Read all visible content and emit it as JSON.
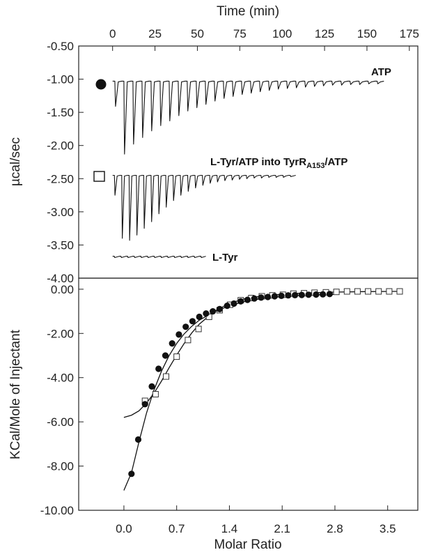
{
  "chart_data": [
    {
      "type": "line",
      "panel": "top",
      "xlabel": "Time (min)",
      "ylabel": "µcal/sec",
      "xlim": [
        -20,
        180
      ],
      "ylim": [
        -4.0,
        -0.5
      ],
      "xticks": [
        "0",
        "25",
        "50",
        "75",
        "100",
        "125",
        "150",
        "175"
      ],
      "yticks": [
        "-0.50",
        "-1.00",
        "-1.50",
        "-2.00",
        "-2.50",
        "-3.00",
        "-3.50",
        "-4.00"
      ],
      "grid": false,
      "series": [
        {
          "name": "ATP",
          "marker": "filled-circle",
          "baseline": -1.03,
          "time_range": [
            0,
            160
          ],
          "injections": 30,
          "peak_depths": [
            0.38,
            1.1,
            0.95,
            0.85,
            0.75,
            0.67,
            0.6,
            0.52,
            0.45,
            0.4,
            0.35,
            0.3,
            0.26,
            0.23,
            0.2,
            0.18,
            0.16,
            0.14,
            0.12,
            0.11,
            0.1,
            0.09,
            0.08,
            0.07,
            0.06,
            0.06,
            0.05,
            0.05,
            0.04,
            0.04
          ]
        },
        {
          "name": "L-Tyr/ATP into TyrR",
          "name_subscript": "A153",
          "name_suffix": "/ATP",
          "marker": "open-square",
          "baseline": -2.45,
          "time_range": [
            0,
            108
          ],
          "injections": 25,
          "peak_depths": [
            0.3,
            0.95,
            0.98,
            0.9,
            0.8,
            0.7,
            0.58,
            0.48,
            0.38,
            0.3,
            0.24,
            0.19,
            0.15,
            0.12,
            0.1,
            0.08,
            0.07,
            0.06,
            0.05,
            0.04,
            0.04,
            0.03,
            0.03,
            0.03,
            0.02
          ]
        },
        {
          "name": "L-Tyr",
          "baseline": -3.67,
          "time_range": [
            0,
            55
          ],
          "injections": 14,
          "peak_depths": [
            0.02,
            0.02,
            0.02,
            0.02,
            0.02,
            0.02,
            0.02,
            0.02,
            0.02,
            0.02,
            0.02,
            0.02,
            0.02,
            0.02
          ]
        }
      ]
    },
    {
      "type": "scatter",
      "panel": "bottom",
      "xlabel": "Molar Ratio",
      "ylabel": "KCal/Mole of Injectant",
      "xlim": [
        -0.6,
        3.9
      ],
      "ylim": [
        -10.0,
        0.5
      ],
      "xticks": [
        "0.0",
        "0.7",
        "1.4",
        "2.1",
        "2.8",
        "3.5"
      ],
      "yticks": [
        "0.00",
        "-2.00",
        "-4.00",
        "-6.00",
        "-8.00",
        "-10.00"
      ],
      "grid": false,
      "series": [
        {
          "name": "ATP",
          "marker": "filled-circle",
          "x": [
            0.1,
            0.19,
            0.28,
            0.37,
            0.46,
            0.55,
            0.64,
            0.73,
            0.82,
            0.91,
            1.0,
            1.09,
            1.18,
            1.27,
            1.37,
            1.46,
            1.55,
            1.64,
            1.73,
            1.82,
            1.91,
            2.0,
            2.09,
            2.18,
            2.27,
            2.36,
            2.45,
            2.55,
            2.64,
            2.73
          ],
          "y": [
            -8.35,
            -6.8,
            -5.2,
            -4.4,
            -3.6,
            -3.0,
            -2.45,
            -2.05,
            -1.7,
            -1.45,
            -1.25,
            -1.1,
            -1.0,
            -0.9,
            -0.75,
            -0.65,
            -0.55,
            -0.48,
            -0.42,
            -0.38,
            -0.35,
            -0.32,
            -0.3,
            -0.28,
            -0.27,
            -0.26,
            -0.25,
            -0.24,
            -0.23,
            -0.22
          ]
        },
        {
          "name": "L-Tyr/ATP into TyrR",
          "marker": "open-square",
          "x": [
            0.28,
            0.42,
            0.56,
            0.7,
            0.85,
            0.99,
            1.13,
            1.27,
            1.41,
            1.55,
            1.69,
            1.83,
            1.97,
            2.11,
            2.25,
            2.39,
            2.53,
            2.68,
            2.82,
            2.96,
            3.1,
            3.24,
            3.38,
            3.52,
            3.66
          ],
          "y": [
            -5.05,
            -4.75,
            -3.95,
            -3.05,
            -2.3,
            -1.8,
            -1.25,
            -0.95,
            -0.7,
            -0.5,
            -0.4,
            -0.32,
            -0.28,
            -0.25,
            -0.2,
            -0.18,
            -0.16,
            -0.14,
            -0.12,
            -0.1,
            -0.1,
            -0.1,
            -0.1,
            -0.1,
            -0.1
          ]
        }
      ],
      "fits": [
        {
          "x": [
            0.0,
            0.1,
            0.2,
            0.3,
            0.4,
            0.5,
            0.6,
            0.7,
            0.8,
            0.9,
            1.0,
            1.2,
            1.4,
            1.6,
            1.8,
            2.0,
            2.2,
            2.4,
            2.6,
            2.8
          ],
          "y": [
            -9.1,
            -8.3,
            -6.9,
            -5.6,
            -4.55,
            -3.7,
            -3.0,
            -2.45,
            -2.02,
            -1.68,
            -1.4,
            -1.02,
            -0.75,
            -0.56,
            -0.44,
            -0.36,
            -0.31,
            -0.27,
            -0.25,
            -0.23
          ]
        },
        {
          "x": [
            0.0,
            0.1,
            0.2,
            0.3,
            0.4,
            0.5,
            0.6,
            0.7,
            0.8,
            0.9,
            1.0,
            1.2,
            1.4,
            1.6,
            1.8,
            2.0,
            2.4,
            2.8,
            3.2,
            3.6,
            3.7
          ],
          "y": [
            -5.8,
            -5.7,
            -5.5,
            -5.15,
            -4.7,
            -4.15,
            -3.55,
            -2.98,
            -2.45,
            -1.98,
            -1.58,
            -1.0,
            -0.64,
            -0.43,
            -0.32,
            -0.25,
            -0.17,
            -0.13,
            -0.11,
            -0.1,
            -0.1
          ]
        }
      ]
    }
  ]
}
